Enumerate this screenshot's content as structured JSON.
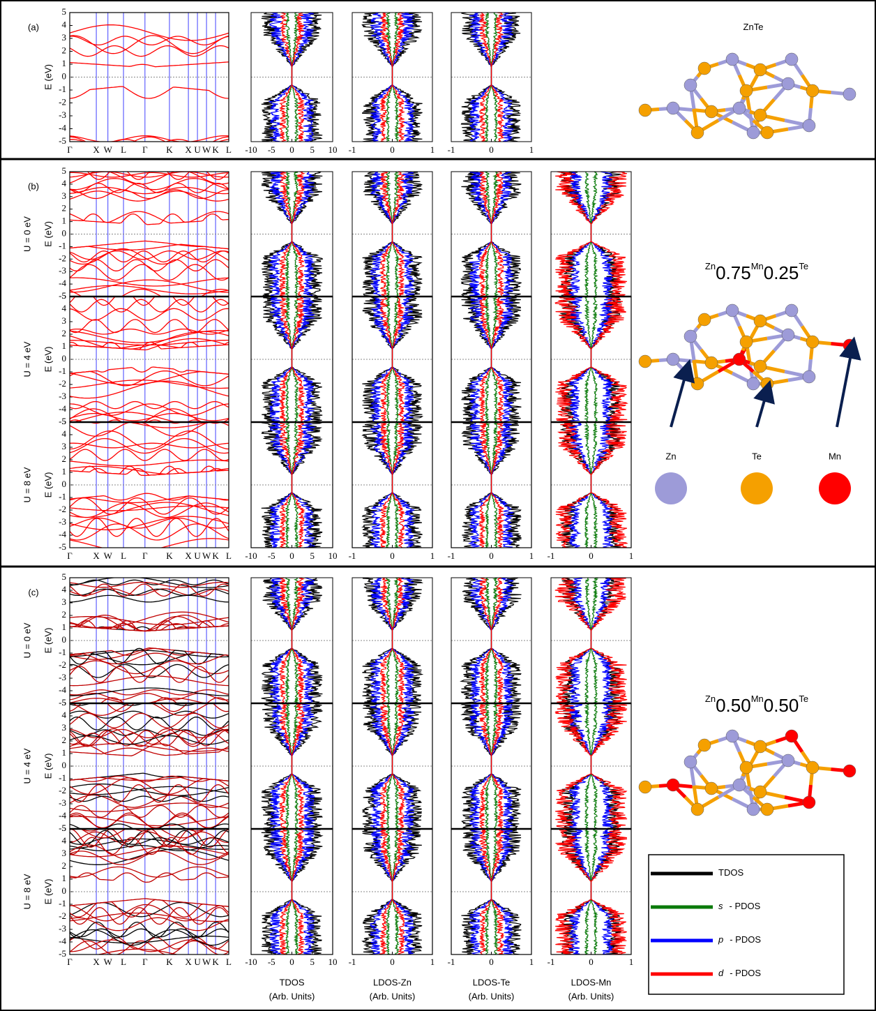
{
  "energy_axis": {
    "label": "E (eV)",
    "ticks": [
      -5,
      -4,
      -3,
      -2,
      -1,
      0,
      1,
      2,
      3,
      4,
      5
    ]
  },
  "k_path": [
    "Γ",
    "X",
    "W",
    "L",
    "Γ",
    "K",
    "X",
    "U",
    "W",
    "K",
    "L"
  ],
  "dos_columns": [
    {
      "name": "TDOS",
      "ticks": [
        -10,
        -5,
        0,
        5,
        10
      ]
    },
    {
      "name": "LDOS-Zn",
      "ticks": [
        -1,
        0,
        1
      ]
    },
    {
      "name": "LDOS-Te",
      "ticks": [
        -1,
        0,
        1
      ]
    },
    {
      "name": "LDOS-Mn",
      "ticks": [
        -1,
        0,
        1
      ]
    }
  ],
  "dos_unit": "(Arb. Units)",
  "panels": [
    {
      "label": "(a)",
      "compound": [
        {
          "text": "ZnTe"
        }
      ],
      "u_labels": []
    },
    {
      "label": "(b)",
      "compound": [
        {
          "text": "Zn"
        },
        {
          "sub": "0.75"
        },
        {
          "text": "Mn"
        },
        {
          "sub": "0.25"
        },
        {
          "text": "Te"
        }
      ],
      "u_labels": [
        "U = 0 eV",
        "U = 4 eV",
        "U = 8 eV"
      ]
    },
    {
      "label": "(c)",
      "compound": [
        {
          "text": "Zn"
        },
        {
          "sub": "0.50"
        },
        {
          "text": "Mn"
        },
        {
          "sub": "0.50"
        },
        {
          "text": "Te"
        }
      ],
      "u_labels": [
        "U = 0 eV",
        "U = 4 eV",
        "U = 8 eV"
      ]
    }
  ],
  "atoms": [
    {
      "name": "Zn",
      "color": "#9d9bd8"
    },
    {
      "name": "Te",
      "color": "#f5a000"
    },
    {
      "name": "Mn",
      "color": "#ff0000"
    }
  ],
  "legend": [
    {
      "text": "TDOS",
      "color": "#000000"
    },
    {
      "symbol": "s",
      "text": "- PDOS",
      "color": "#0a7a0a"
    },
    {
      "symbol": "p",
      "text": "- PDOS",
      "color": "#0000ff"
    },
    {
      "symbol": "d",
      "text": "- PDOS",
      "color": "#ff0000"
    }
  ]
}
